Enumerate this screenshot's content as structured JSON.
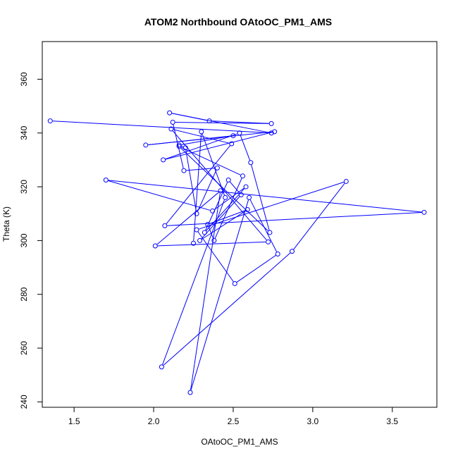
{
  "chart_data": {
    "type": "line",
    "title": "ATOM2 Northbound OAtoOC_PM1_AMS",
    "xlabel": "OAtoOC_PM1_AMS",
    "ylabel": "Theta (K)",
    "xlim": [
      1.3,
      3.78
    ],
    "ylim": [
      238,
      374
    ],
    "xticks": [
      1.5,
      2.0,
      2.5,
      3.0,
      3.5
    ],
    "xtick_labels": [
      "1.5",
      "2.0",
      "2.5",
      "3.0",
      "3.5"
    ],
    "yticks": [
      240,
      260,
      280,
      300,
      320,
      340,
      360
    ],
    "ytick_labels": [
      "240",
      "260",
      "280",
      "300",
      "320",
      "340",
      "360"
    ],
    "grid": false,
    "series_color": "#0000ff",
    "markers": "open-circle",
    "series": [
      {
        "x": [
          1.35,
          2.74,
          2.1,
          2.35,
          2.74,
          2.12,
          2.19,
          2.4,
          2.27,
          2.2,
          2.16,
          2.5,
          1.95,
          2.76,
          2.06,
          2.54,
          2.61,
          2.73,
          2.16,
          2.56,
          2.38,
          2.34,
          2.59,
          2.29,
          2.55,
          2.47,
          2.32,
          2.58,
          2.37,
          1.7,
          3.7,
          2.07,
          2.49,
          2.11,
          2.72,
          2.01,
          2.42,
          2.23,
          2.6,
          2.78,
          2.51,
          2.27,
          3.21,
          2.87,
          2.05,
          2.45,
          2.3,
          2.25
        ],
        "y": [
          344.5,
          340.0,
          347.5,
          344.5,
          343.5,
          344.0,
          326.0,
          327.0,
          310.0,
          334.5,
          335.5,
          339.0,
          335.5,
          340.5,
          330.0,
          340.0,
          329.0,
          303.0,
          335.0,
          324.0,
          300.0,
          306.0,
          311.5,
          300.0,
          317.0,
          322.5,
          303.0,
          320.0,
          311.0,
          322.5,
          310.5,
          305.5,
          336.0,
          341.5,
          299.5,
          298.0,
          318.5,
          243.5,
          316.0,
          295.0,
          284.0,
          304.0,
          322.0,
          296.0,
          253.0,
          316.0,
          340.5,
          299.0
        ]
      }
    ]
  }
}
